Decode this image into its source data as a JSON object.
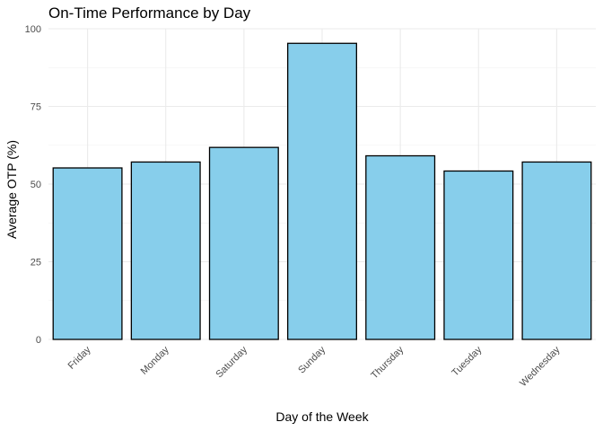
{
  "chart_data": {
    "type": "bar",
    "title": "On-Time Performance by Day",
    "xlabel": "Day of the Week",
    "ylabel": "Average OTP (%)",
    "categories": [
      "Friday",
      "Monday",
      "Saturday",
      "Sunday",
      "Thursday",
      "Tuesday",
      "Wednesday"
    ],
    "values": [
      55.2,
      57.1,
      61.8,
      95.3,
      59.1,
      54.2,
      57.1
    ],
    "ylim": [
      0,
      100
    ],
    "yticks": [
      "0",
      "25",
      "50",
      "75",
      "100"
    ],
    "bar_color": "#87CEEB",
    "bar_outline": "#000000",
    "grid": true,
    "legend": "none"
  }
}
